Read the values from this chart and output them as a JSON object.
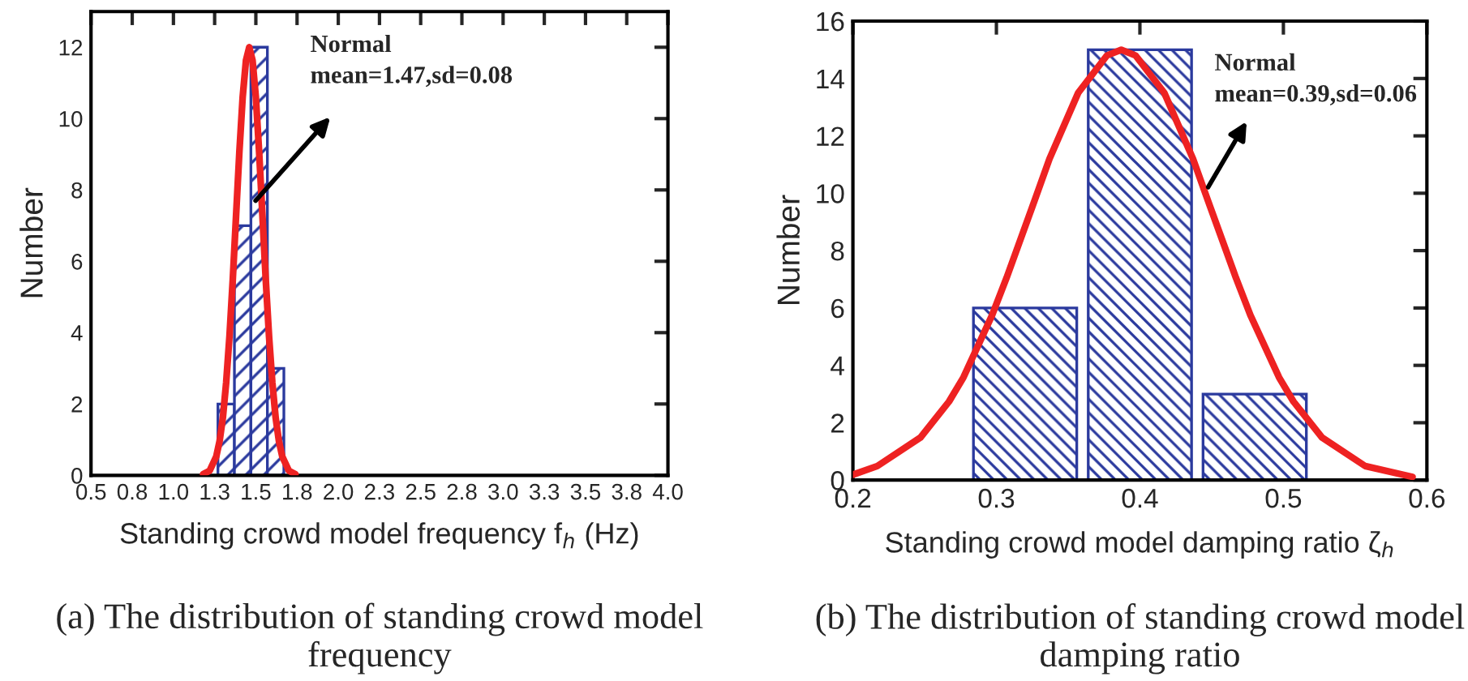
{
  "chart_data": [
    {
      "type": "histogram",
      "bins": [
        1.27,
        1.37,
        1.47,
        1.57,
        1.67
      ],
      "values": [
        2,
        7,
        12,
        3
      ],
      "color": "#2b3a9e",
      "series": [
        {
          "type": "line",
          "color": "#ee2222",
          "x": [
            1.18,
            1.22,
            1.26,
            1.28,
            1.3,
            1.32,
            1.34,
            1.36,
            1.38,
            1.4,
            1.42,
            1.44,
            1.46,
            1.48,
            1.5,
            1.52,
            1.54,
            1.56,
            1.58,
            1.6,
            1.62,
            1.64,
            1.66,
            1.7,
            1.74
          ],
          "values": [
            0.03,
            0.13,
            0.53,
            0.96,
            1.62,
            2.6,
            3.9,
            5.49,
            7.28,
            9.06,
            10.6,
            11.63,
            12,
            11.63,
            10.6,
            9.06,
            7.28,
            5.49,
            3.9,
            2.6,
            1.62,
            0.96,
            0.53,
            0.13,
            0.03
          ]
        }
      ],
      "xlabel": "Standing crowd model frequency f$_{h}$ (Hz)",
      "ylabel": "Number",
      "xlim": [
        0.5,
        4.0
      ],
      "ylim": [
        0,
        13
      ],
      "xticks": [
        0.5,
        {
          "value": 0.75,
          "label": "0.8"
        },
        {
          "value": 1,
          "label": "1.0"
        },
        {
          "value": 1.25,
          "label": "1.3"
        },
        1.5,
        {
          "value": 1.75,
          "label": "1.8"
        },
        {
          "value": 2,
          "label": "2.0"
        },
        {
          "value": 2.25,
          "label": "2.3"
        },
        2.5,
        {
          "value": 2.75,
          "label": "2.8"
        },
        {
          "value": 3,
          "label": "3.0"
        },
        {
          "value": 3.25,
          "label": "3.3"
        },
        3.5,
        {
          "value": 3.75,
          "label": "3.8"
        },
        {
          "value": 4,
          "label": "4.0"
        }
      ],
      "yticks": [
        0,
        2,
        4,
        6,
        8,
        10,
        12
      ],
      "grid": false,
      "legend": false,
      "annotations": [
        "Normal\nmean=1.47,sd=0.08",
        "(a) The distribution of standing crowd model\nfrequency"
      ]
    },
    {
      "type": "histogram",
      "bins": [
        0.28,
        0.36,
        0.44,
        0.52
      ],
      "values": [
        6,
        15,
        3
      ],
      "color": "#2b3a9e",
      "series": [
        {
          "type": "line",
          "color": "#ee2222",
          "x": [
            0.2,
            0.217,
            0.247,
            0.267,
            0.277,
            0.297,
            0.307,
            0.327,
            0.337,
            0.357,
            0.377,
            0.387,
            0.397,
            0.417,
            0.437,
            0.447,
            0.467,
            0.477,
            0.497,
            0.507,
            0.527,
            0.557,
            0.59
          ],
          "values": [
            0.19,
            0.49,
            1.48,
            2.74,
            3.58,
            5.75,
            7.04,
            9.8,
            11.2,
            13.5,
            14.8,
            15,
            14.8,
            13.5,
            11.2,
            9.8,
            7.04,
            5.75,
            3.58,
            2.74,
            1.48,
            0.49,
            0.11
          ]
        }
      ],
      "xlabel": "Standing crowd model damping ratio ζ$_{h}$",
      "ylabel": "Number",
      "xlim": [
        0.2,
        0.6
      ],
      "ylim": [
        0,
        16
      ],
      "xticks": [
        0.2,
        0.3,
        0.4,
        0.5,
        0.6
      ],
      "yticks": [
        0,
        2,
        4,
        6,
        8,
        10,
        12,
        14,
        16
      ],
      "grid": false,
      "legend": false,
      "annotations": [
        "Normal\nmean=0.39,sd=0.06",
        "(b) The distribution of standing crowd model\ndamping ratio"
      ]
    }
  ]
}
